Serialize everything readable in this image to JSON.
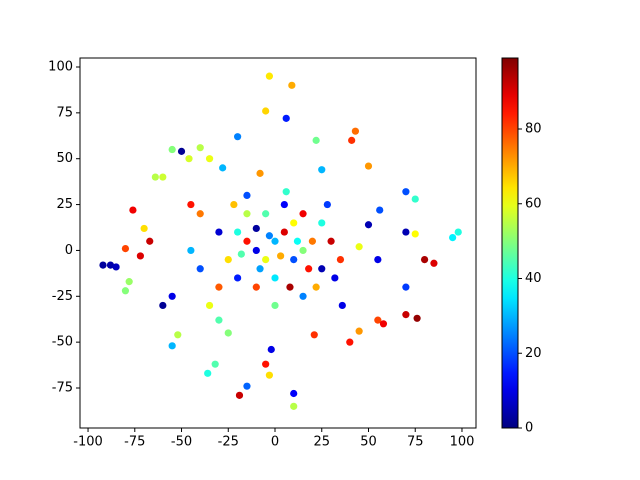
{
  "chart_data": {
    "type": "scatter",
    "x": [
      -92,
      -88,
      -85,
      -80,
      -78,
      -80,
      -76,
      -70,
      -67,
      -72,
      -64,
      -60,
      -55,
      -50,
      -46,
      -40,
      -35,
      -60,
      -55,
      -55,
      -52,
      -36,
      -32,
      -19,
      -15,
      -5,
      -3,
      -2,
      10,
      10,
      21,
      40,
      45,
      36,
      55,
      58,
      70,
      76,
      70,
      80,
      85,
      95,
      98,
      70,
      75,
      70,
      75,
      56,
      50,
      50,
      41,
      43,
      25,
      22,
      6,
      9,
      -5,
      -3,
      -20,
      -8,
      -15,
      -45,
      -40,
      -45,
      -40,
      -30,
      -25,
      55,
      45,
      -28,
      -20,
      -15,
      -10,
      -5,
      0,
      5,
      10,
      15,
      20,
      25,
      -25,
      -20,
      -10,
      0,
      8,
      15,
      22,
      -5,
      5,
      15,
      -15,
      25,
      30,
      -30,
      -30,
      0,
      10,
      -10,
      3,
      -3,
      12,
      18,
      -18,
      -8,
      28,
      -22,
      6,
      -35,
      32,
      35
    ],
    "y": [
      -8,
      -8,
      -9,
      -22,
      -17,
      1,
      22,
      12,
      5,
      -3,
      40,
      40,
      55,
      54,
      50,
      56,
      50,
      -30,
      -25,
      -52,
      -46,
      -67,
      -62,
      -79,
      -74,
      -62,
      -68,
      -54,
      -78,
      -85,
      -46,
      -50,
      -44,
      -30,
      -38,
      -40,
      -35,
      -37,
      -20,
      -5,
      -7,
      7,
      10,
      10,
      9,
      32,
      28,
      22,
      14,
      46,
      60,
      65,
      44,
      60,
      72,
      90,
      76,
      95,
      62,
      42,
      30,
      25,
      20,
      0,
      -10,
      -38,
      -45,
      -5,
      2,
      45,
      10,
      5,
      0,
      -5,
      5,
      10,
      -5,
      0,
      5,
      -10,
      -5,
      -15,
      -20,
      -15,
      -20,
      -25,
      -20,
      20,
      25,
      20,
      20,
      15,
      5,
      10,
      -20,
      -30,
      15,
      12,
      -3,
      8,
      5,
      -10,
      -2,
      -10,
      25,
      25,
      32,
      -30,
      -15,
      -5
    ],
    "c": [
      3,
      4,
      6,
      50,
      52,
      80,
      88,
      65,
      92,
      90,
      55,
      57,
      50,
      2,
      58,
      55,
      60,
      2,
      10,
      30,
      55,
      40,
      45,
      92,
      22,
      85,
      65,
      10,
      12,
      55,
      82,
      85,
      72,
      10,
      80,
      88,
      92,
      97,
      18,
      95,
      90,
      36,
      40,
      5,
      62,
      20,
      42,
      20,
      5,
      72,
      82,
      76,
      30,
      48,
      15,
      70,
      66,
      64,
      25,
      72,
      20,
      85,
      75,
      30,
      20,
      45,
      50,
      10,
      60,
      30,
      40,
      85,
      10,
      60,
      30,
      90,
      20,
      50,
      75,
      5,
      65,
      15,
      80,
      35,
      95,
      25,
      70,
      45,
      12,
      88,
      55,
      40,
      92,
      8,
      78,
      48,
      62,
      3,
      70,
      25,
      38,
      85,
      45,
      28,
      18,
      68,
      42,
      60,
      10,
      82
    ],
    "colormap": "jet",
    "xlim": [
      -104.3,
      107.5
    ],
    "xticks": [
      -100,
      -75,
      -50,
      -25,
      0,
      25,
      50,
      75,
      100
    ],
    "ylim": [
      -96.8,
      104.9
    ],
    "yticks": [
      -75,
      -50,
      -25,
      0,
      25,
      50,
      75,
      100
    ],
    "clim": [
      0,
      99
    ],
    "cticks": [
      0,
      20,
      40,
      60,
      80
    ]
  }
}
